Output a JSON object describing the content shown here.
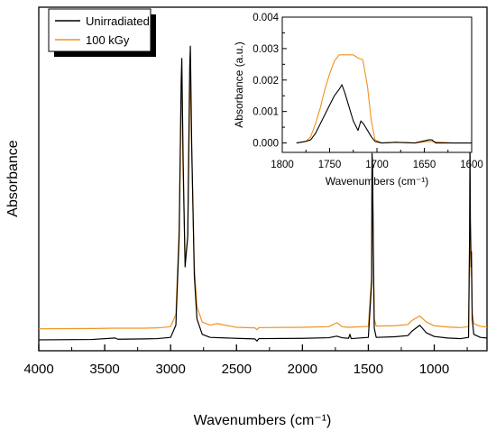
{
  "chart_data": [
    {
      "type": "line",
      "panel": "main",
      "xlabel": "Wavenumbers (cm⁻¹)",
      "ylabel": "Absorbance",
      "xlim": [
        4000,
        600
      ],
      "x_reversed": true,
      "xticks": [
        4000,
        3500,
        3000,
        2500,
        2000,
        1500,
        1000
      ],
      "y_tick_labels": false,
      "grid": false,
      "legend_position": "top-left",
      "series": [
        {
          "name": "Unirradiated",
          "color": "#000000",
          "points": [
            [
              4000,
              0.012
            ],
            [
              3600,
              0.013
            ],
            [
              3420,
              0.018
            ],
            [
              3400,
              0.014
            ],
            [
              3200,
              0.015
            ],
            [
              3100,
              0.016
            ],
            [
              3000,
              0.02
            ],
            [
              2960,
              0.06
            ],
            [
              2935,
              0.35
            ],
            [
              2920,
              0.85
            ],
            [
              2915,
              0.93
            ],
            [
              2905,
              0.6
            ],
            [
              2890,
              0.25
            ],
            [
              2870,
              0.35
            ],
            [
              2855,
              0.9
            ],
            [
              2850,
              0.97
            ],
            [
              2840,
              0.65
            ],
            [
              2820,
              0.22
            ],
            [
              2800,
              0.08
            ],
            [
              2760,
              0.03
            ],
            [
              2700,
              0.02
            ],
            [
              2500,
              0.017
            ],
            [
              2360,
              0.015
            ],
            [
              2345,
              0.008
            ],
            [
              2330,
              0.016
            ],
            [
              2000,
              0.017
            ],
            [
              1800,
              0.019
            ],
            [
              1740,
              0.024
            ],
            [
              1700,
              0.019
            ],
            [
              1650,
              0.017
            ],
            [
              1640,
              0.03
            ],
            [
              1630,
              0.016
            ],
            [
              1500,
              0.02
            ],
            [
              1475,
              0.2
            ],
            [
              1472,
              0.62
            ],
            [
              1468,
              0.58
            ],
            [
              1462,
              0.3
            ],
            [
              1455,
              0.05
            ],
            [
              1440,
              0.02
            ],
            [
              1300,
              0.022
            ],
            [
              1200,
              0.026
            ],
            [
              1170,
              0.04
            ],
            [
              1110,
              0.06
            ],
            [
              1060,
              0.035
            ],
            [
              1000,
              0.023
            ],
            [
              900,
              0.018
            ],
            [
              800,
              0.016
            ],
            [
              740,
              0.02
            ],
            [
              732,
              0.35
            ],
            [
              729,
              0.66
            ],
            [
              726,
              0.4
            ],
            [
              720,
              0.25
            ],
            [
              718,
              0.3
            ],
            [
              712,
              0.08
            ],
            [
              700,
              0.03
            ],
            [
              650,
              0.02
            ],
            [
              600,
              0.018
            ]
          ]
        },
        {
          "name": "100 kGy",
          "color": "#f0921e",
          "points": [
            [
              4000,
              0.048
            ],
            [
              3600,
              0.049
            ],
            [
              3420,
              0.05
            ],
            [
              3200,
              0.05
            ],
            [
              3100,
              0.051
            ],
            [
              3000,
              0.055
            ],
            [
              2960,
              0.095
            ],
            [
              2935,
              0.38
            ],
            [
              2920,
              0.8
            ],
            [
              2915,
              0.84
            ],
            [
              2905,
              0.55
            ],
            [
              2890,
              0.27
            ],
            [
              2870,
              0.35
            ],
            [
              2855,
              0.82
            ],
            [
              2850,
              0.86
            ],
            [
              2840,
              0.62
            ],
            [
              2820,
              0.25
            ],
            [
              2800,
              0.12
            ],
            [
              2760,
              0.07
            ],
            [
              2700,
              0.06
            ],
            [
              2650,
              0.065
            ],
            [
              2500,
              0.053
            ],
            [
              2360,
              0.051
            ],
            [
              2345,
              0.045
            ],
            [
              2330,
              0.052
            ],
            [
              2000,
              0.053
            ],
            [
              1800,
              0.055
            ],
            [
              1740,
              0.068
            ],
            [
              1720,
              0.062
            ],
            [
              1700,
              0.055
            ],
            [
              1650,
              0.053
            ],
            [
              1500,
              0.056
            ],
            [
              1475,
              0.22
            ],
            [
              1472,
              0.57
            ],
            [
              1468,
              0.53
            ],
            [
              1462,
              0.3
            ],
            [
              1455,
              0.08
            ],
            [
              1440,
              0.057
            ],
            [
              1300,
              0.058
            ],
            [
              1200,
              0.062
            ],
            [
              1170,
              0.075
            ],
            [
              1110,
              0.09
            ],
            [
              1060,
              0.07
            ],
            [
              1000,
              0.058
            ],
            [
              900,
              0.054
            ],
            [
              800,
              0.052
            ],
            [
              740,
              0.055
            ],
            [
              732,
              0.3
            ],
            [
              729,
              0.5
            ],
            [
              726,
              0.33
            ],
            [
              720,
              0.22
            ],
            [
              718,
              0.24
            ],
            [
              712,
              0.1
            ],
            [
              700,
              0.065
            ],
            [
              650,
              0.056
            ],
            [
              600,
              0.054
            ]
          ]
        }
      ]
    },
    {
      "type": "line",
      "panel": "inset",
      "xlabel": "Wavenumbers (cm⁻¹)",
      "ylabel": "Absorbance (a.u.)",
      "xlim": [
        1800,
        1600
      ],
      "x_reversed": true,
      "ylim": [
        -0.0003,
        0.004
      ],
      "xticks": [
        1800,
        1750,
        1700,
        1650,
        1600
      ],
      "yticks": [
        0.0,
        0.001,
        0.002,
        0.003,
        0.004
      ],
      "ytick_labels": [
        "0.000",
        "0.001",
        "0.002",
        "0.003",
        "0.004"
      ],
      "grid": false,
      "series": [
        {
          "name": "Unirradiated",
          "color": "#000000",
          "points": [
            [
              1785,
              0.0
            ],
            [
              1775,
              5e-05
            ],
            [
              1770,
              0.0001
            ],
            [
              1765,
              0.0003
            ],
            [
              1760,
              0.0006
            ],
            [
              1755,
              0.0009
            ],
            [
              1750,
              0.0012
            ],
            [
              1745,
              0.0015
            ],
            [
              1740,
              0.0017
            ],
            [
              1737,
              0.00185
            ],
            [
              1734,
              0.0016
            ],
            [
              1730,
              0.0012
            ],
            [
              1725,
              0.0007
            ],
            [
              1720,
              0.0004
            ],
            [
              1717,
              0.0007
            ],
            [
              1714,
              0.0006
            ],
            [
              1710,
              0.0004
            ],
            [
              1706,
              0.0002
            ],
            [
              1702,
              5e-05
            ],
            [
              1695,
              0.0
            ],
            [
              1680,
              2e-05
            ],
            [
              1660,
              0.0
            ],
            [
              1645,
              0.0001
            ],
            [
              1642,
              0.0001
            ],
            [
              1638,
              0.0
            ],
            [
              1620,
              0.0
            ],
            [
              1600,
              0.0
            ]
          ]
        },
        {
          "name": "100 kGy",
          "color": "#f0921e",
          "points": [
            [
              1785,
              0.0
            ],
            [
              1775,
              5e-05
            ],
            [
              1770,
              0.0002
            ],
            [
              1765,
              0.0006
            ],
            [
              1760,
              0.0011
            ],
            [
              1755,
              0.0017
            ],
            [
              1750,
              0.0022
            ],
            [
              1745,
              0.0026
            ],
            [
              1740,
              0.0028
            ],
            [
              1735,
              0.0028
            ],
            [
              1730,
              0.0028
            ],
            [
              1725,
              0.0028
            ],
            [
              1720,
              0.0027
            ],
            [
              1715,
              0.00265
            ],
            [
              1710,
              0.0018
            ],
            [
              1706,
              0.0007
            ],
            [
              1702,
              0.0001
            ],
            [
              1695,
              0.0
            ],
            [
              1680,
              2e-05
            ],
            [
              1660,
              0.0
            ],
            [
              1645,
              5e-05
            ],
            [
              1620,
              0.0
            ],
            [
              1600,
              0.0
            ]
          ]
        }
      ]
    }
  ]
}
